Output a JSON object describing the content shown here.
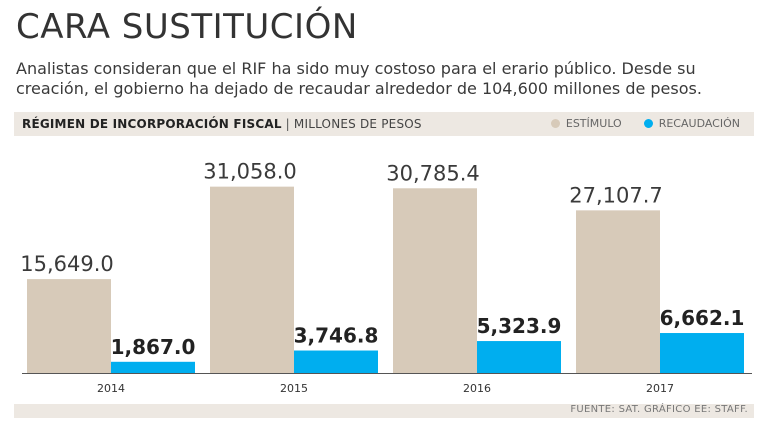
{
  "header": {
    "title": "CARA SUSTITUCIÓN",
    "subtitle": "Analistas consideran que el RIF ha sido muy costoso para el erario público. Desde su creación, el gobierno ha dejado de recaudar alrededor de 104,600 millones de pesos."
  },
  "band": {
    "title": "RÉGIMEN DE INCORPORACIÓN FISCAL",
    "separator": "|",
    "unit": "MILLONES DE PESOS"
  },
  "legend": {
    "estimulo": "ESTÍMULO",
    "recaudacion": "RECAUDACIÓN"
  },
  "colors": {
    "estimulo": "#d7cab9",
    "recaudacion": "#00aeef",
    "axis": "#555555"
  },
  "chart_data": {
    "type": "bar",
    "title": "RÉGIMEN DE INCORPORACIÓN FISCAL",
    "unit": "MILLONES DE PESOS",
    "categories": [
      "2014",
      "2015",
      "2016",
      "2017"
    ],
    "series": [
      {
        "name": "ESTÍMULO",
        "values": [
          15649.0,
          31058.0,
          30785.4,
          27107.7
        ],
        "labels": [
          "15,649.0",
          "31,058.0",
          "30,785.4",
          "27,107.7"
        ]
      },
      {
        "name": "RECAUDACIÓN",
        "values": [
          1867.0,
          3746.8,
          5323.9,
          6662.1
        ],
        "labels": [
          "1,867.0",
          "3,746.8",
          "5,323.9",
          "6,662.1"
        ]
      }
    ],
    "ylim": [
      0,
      33000
    ],
    "grid": false,
    "legend": "top-right"
  },
  "footer": {
    "source": "FUENTE: SAT. GRÁFICO EE: STAFF."
  }
}
